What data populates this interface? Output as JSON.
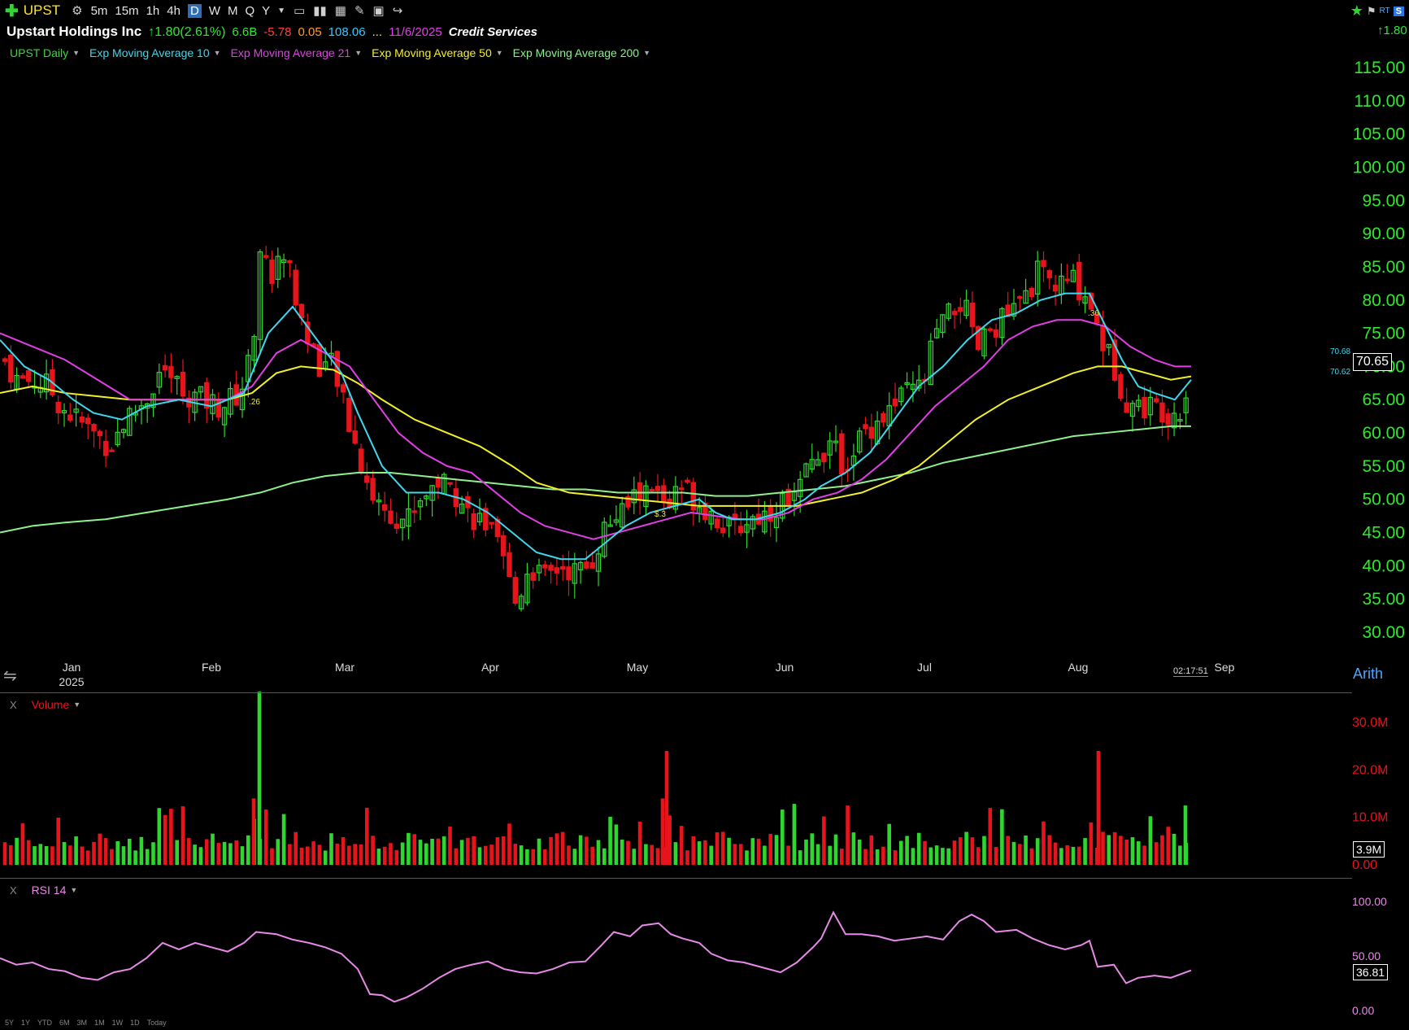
{
  "toolbar": {
    "symbol": "UPST",
    "intervals": [
      "5m",
      "15m",
      "1h",
      "4h",
      "D",
      "W",
      "M",
      "Q",
      "Y"
    ],
    "active_interval": "D"
  },
  "info_bar": {
    "company": "Upstart Holdings Inc",
    "change": "↑1.80(2.61%)",
    "market_cap": "6.6B",
    "eps": "-5.78",
    "value3": "0.05",
    "value4": "108.06",
    "ellipsis": "...",
    "date": "11/6/2025",
    "industry": "Credit Services",
    "right_change": "↑1.80"
  },
  "right_top": {
    "rt": "RT",
    "s": "S"
  },
  "legend": [
    {
      "label": "UPST Daily",
      "color": "#36d936"
    },
    {
      "label": "Exp Moving Average 10",
      "color": "#3fd7ee"
    },
    {
      "label": "Exp Moving Average 21",
      "color": "#e23ee6"
    },
    {
      "label": "Exp Moving Average 50",
      "color": "#f2ef2a"
    },
    {
      "label": "Exp Moving Average 200",
      "color": "#8ef08e"
    }
  ],
  "price_axis": {
    "labels": [
      "115.00",
      "110.00",
      "105.00",
      "100.00",
      "95.00",
      "90.00",
      "85.00",
      "80.00",
      "75.00",
      "70.00",
      "65.00",
      "60.00",
      "55.00",
      "50.00",
      "45.00",
      "40.00",
      "35.00",
      "30.00"
    ],
    "current_price": "70.65",
    "ema_value_1": "70.68",
    "ema_value_2": "70.62"
  },
  "time_axis": {
    "months": [
      "Jan",
      "Feb",
      "Mar",
      "Apr",
      "May",
      "Jun",
      "Jul",
      "Aug",
      "Sep"
    ],
    "year": "2025",
    "clock": "02:17:51"
  },
  "price_markers": [
    ".26",
    "$.3",
    ".36"
  ],
  "volume": {
    "label": "Volume",
    "close_label": "X",
    "axis_labels": [
      "30.0M",
      "20.0M",
      "10.0M",
      "0.00"
    ],
    "current": "3.9M"
  },
  "rsi": {
    "label": "RSI 14",
    "close_label": "X",
    "axis_labels": [
      "100.00",
      "50.00",
      "0.00"
    ],
    "current": "36.81"
  },
  "scale_mode": "Arith",
  "periods": [
    "5Y",
    "1Y",
    "YTD",
    "6M",
    "3M",
    "1M",
    "1W",
    "1D",
    "Today"
  ],
  "colors": {
    "up": "#2fd62f",
    "down": "#e8141c",
    "axis_text": "#2ee82e",
    "ema10": "#3fd7ee",
    "ema21": "#e23ee6",
    "ema50": "#f2ef2a",
    "ema200": "#8ef08e",
    "rsi": "#e88ae8"
  },
  "chart_data": [
    {
      "type": "candlestick",
      "title": "UPST Daily",
      "ylim": [
        30,
        115
      ],
      "x": [
        "Jan",
        "Feb",
        "Mar",
        "Apr",
        "May",
        "Jun",
        "Jul",
        "Aug"
      ],
      "approx_close_by_month": [
        68,
        65,
        68,
        38,
        50,
        50,
        77,
        66
      ],
      "series": [
        {
          "name": "Exp Moving Average 10",
          "values": [
            70,
            61,
            79,
            42,
            49,
            52,
            74,
            70.68
          ]
        },
        {
          "name": "Exp Moving Average 21",
          "values": [
            74,
            65,
            73,
            50,
            47,
            50,
            68,
            70.62
          ]
        },
        {
          "name": "Exp Moving Average 50",
          "values": [
            67,
            65,
            70,
            56,
            50,
            51,
            59,
            69
          ]
        },
        {
          "name": "Exp Moving Average 200",
          "values": [
            45,
            47,
            51,
            54,
            52,
            51,
            54,
            59
          ]
        }
      ]
    },
    {
      "type": "bar",
      "title": "Volume",
      "ylim": [
        0,
        35
      ],
      "unit": "M",
      "current": 3.9
    },
    {
      "type": "line",
      "title": "RSI 14",
      "ylim": [
        0,
        100
      ],
      "current": 36.81
    }
  ]
}
